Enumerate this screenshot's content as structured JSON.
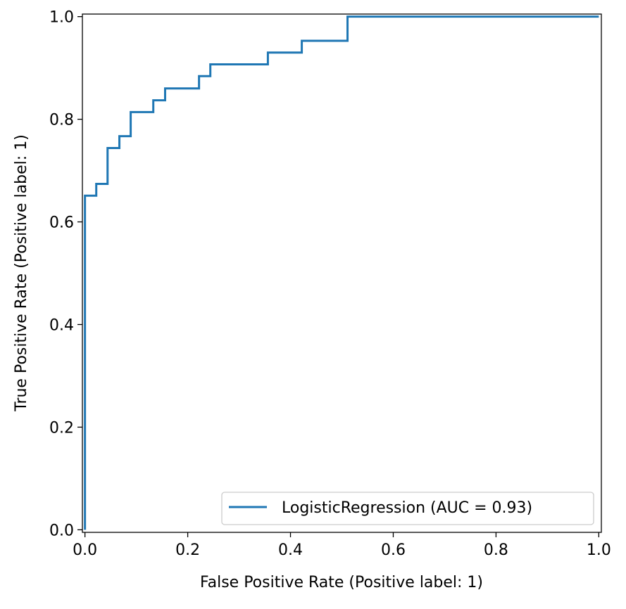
{
  "chart_data": {
    "type": "line",
    "title": "",
    "xlabel": "False Positive Rate (Positive label: 1)",
    "ylabel": "True Positive Rate (Positive label: 1)",
    "xlim": [
      -0.005,
      1.005
    ],
    "ylim": [
      -0.005,
      1.005
    ],
    "grid": false,
    "legend_position": "lower-right",
    "x_ticks": [
      0.0,
      0.2,
      0.4,
      0.6,
      0.8,
      1.0
    ],
    "x_tick_labels": [
      "0.0",
      "0.2",
      "0.4",
      "0.6",
      "0.8",
      "1.0"
    ],
    "y_ticks": [
      0.0,
      0.2,
      0.4,
      0.6,
      0.8,
      1.0
    ],
    "y_tick_labels": [
      "0.0",
      "0.2",
      "0.4",
      "0.6",
      "0.8",
      "1.0"
    ],
    "series": [
      {
        "name": "LogisticRegression (AUC = 0.93)",
        "color": "#1f77b4",
        "x": [
          0.0,
          0.0,
          0.0,
          0.022,
          0.022,
          0.044,
          0.044,
          0.067,
          0.067,
          0.089,
          0.089,
          0.133,
          0.133,
          0.156,
          0.156,
          0.222,
          0.222,
          0.244,
          0.244,
          0.356,
          0.356,
          0.422,
          0.422,
          0.511,
          0.511,
          1.0
        ],
        "y": [
          0.0,
          0.023,
          0.651,
          0.651,
          0.674,
          0.674,
          0.744,
          0.744,
          0.767,
          0.767,
          0.814,
          0.814,
          0.837,
          0.837,
          0.86,
          0.86,
          0.884,
          0.884,
          0.907,
          0.907,
          0.93,
          0.93,
          0.953,
          0.953,
          1.0,
          1.0
        ]
      }
    ]
  }
}
